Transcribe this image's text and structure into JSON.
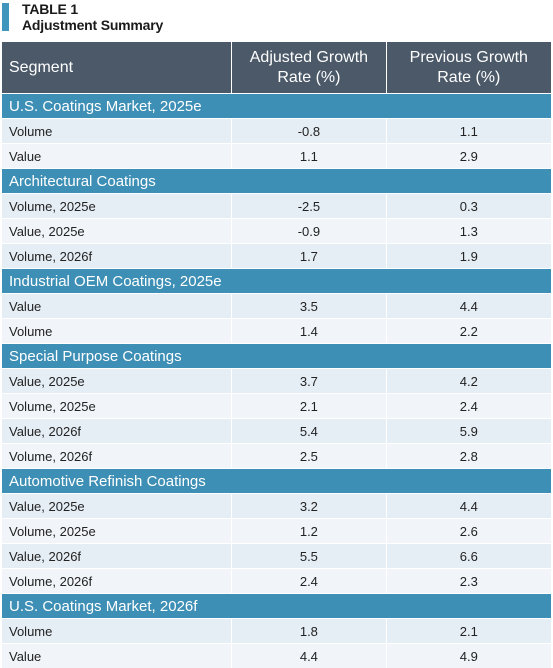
{
  "title": {
    "label": "TABLE 1",
    "subtitle": "Adjustment Summary"
  },
  "header": {
    "segment": "Segment",
    "adjusted_line1": "Adjusted Growth",
    "adjusted_line2": "Rate (%)",
    "previous_line1": "Previous Growth",
    "previous_line2": "Rate (%)"
  },
  "sections": [
    {
      "name": "U.S. Coatings Market, 2025e",
      "rows": [
        {
          "segment": "Volume",
          "adjusted": "-0.8",
          "previous": "1.1"
        },
        {
          "segment": "Value",
          "adjusted": "1.1",
          "previous": "2.9"
        }
      ]
    },
    {
      "name": "Architectural Coatings",
      "rows": [
        {
          "segment": "Volume, 2025e",
          "adjusted": "-2.5",
          "previous": "0.3"
        },
        {
          "segment": "Value, 2025e",
          "adjusted": "-0.9",
          "previous": "1.3"
        },
        {
          "segment": "Volume, 2026f",
          "adjusted": "1.7",
          "previous": "1.9"
        }
      ]
    },
    {
      "name": "Industrial OEM Coatings, 2025e",
      "rows": [
        {
          "segment": "Value",
          "adjusted": "3.5",
          "previous": "4.4"
        },
        {
          "segment": "Volume",
          "adjusted": "1.4",
          "previous": "2.2"
        }
      ]
    },
    {
      "name": "Special Purpose Coatings",
      "rows": [
        {
          "segment": "Value, 2025e",
          "adjusted": "3.7",
          "previous": "4.2"
        },
        {
          "segment": "Volume, 2025e",
          "adjusted": "2.1",
          "previous": "2.4"
        },
        {
          "segment": "Value, 2026f",
          "adjusted": "5.4",
          "previous": "5.9"
        },
        {
          "segment": "Volume, 2026f",
          "adjusted": "2.5",
          "previous": "2.8"
        }
      ]
    },
    {
      "name": "Automotive Refinish Coatings",
      "rows": [
        {
          "segment": "Value, 2025e",
          "adjusted": "3.2",
          "previous": "4.4"
        },
        {
          "segment": "Volume, 2025e",
          "adjusted": "1.2",
          "previous": "2.6"
        },
        {
          "segment": "Value, 2026f",
          "adjusted": "5.5",
          "previous": "6.6"
        },
        {
          "segment": "Volume, 2026f",
          "adjusted": "2.4",
          "previous": "2.3"
        }
      ]
    },
    {
      "name": "U.S. Coatings Market, 2026f",
      "rows": [
        {
          "segment": "Volume",
          "adjusted": "1.8",
          "previous": "2.1"
        },
        {
          "segment": "Value",
          "adjusted": "4.4",
          "previous": "4.9"
        }
      ]
    }
  ],
  "colors": {
    "header_bg": "#4b5969",
    "section_bg": "#3e8fb5",
    "row_odd": "#e6eef5",
    "row_even": "#f1f5f9",
    "accent_bar": "#3f95bc"
  }
}
